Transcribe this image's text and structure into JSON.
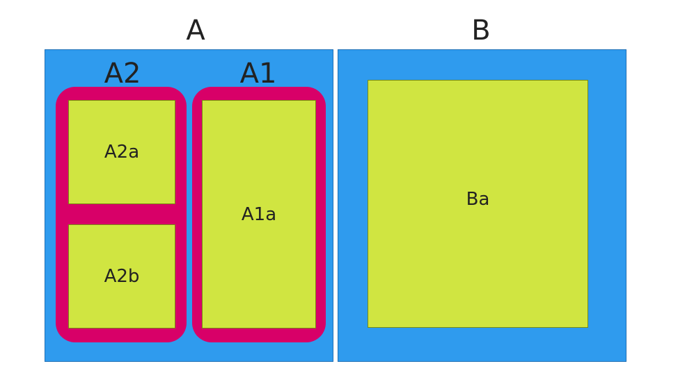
{
  "diagram": {
    "colors": {
      "outer_panel": "#2f9bee",
      "group": "#d80068",
      "leaf": "#d0e541",
      "text": "#222222"
    },
    "panel_a": {
      "title": "A",
      "groups": {
        "a2": {
          "label": "A2",
          "items": [
            "A2a",
            "A2b"
          ]
        },
        "a1": {
          "label": "A1",
          "items": [
            "A1a"
          ]
        }
      }
    },
    "panel_b": {
      "title": "B",
      "items": [
        "Ba"
      ]
    }
  }
}
